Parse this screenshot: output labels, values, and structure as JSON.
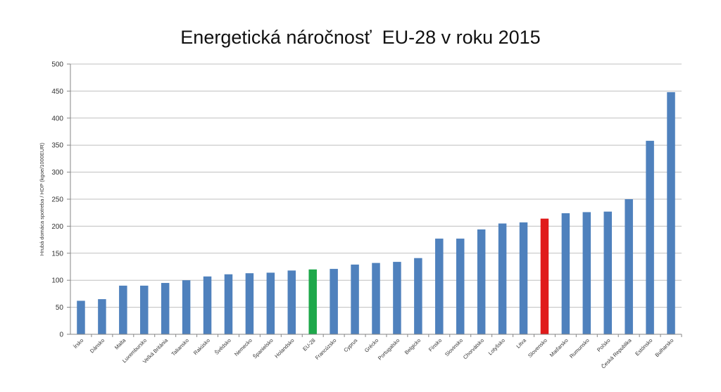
{
  "chart_data": {
    "type": "bar",
    "title": "Energetická náročnosť  EU-28 v roku 2015",
    "ylabel": "Hrubá domáca spotreba / HDP (kgoe/1000EUR)",
    "xlabel": "",
    "ylim": [
      0,
      500
    ],
    "yticks": [
      0,
      50,
      100,
      150,
      200,
      250,
      300,
      350,
      400,
      450,
      500
    ],
    "grid": true,
    "categories": [
      "Írsko",
      "Dánsko",
      "Malta",
      "Luxembursko",
      "Veľká Británia",
      "Taliansko",
      "Rakúsko",
      "Švédsko",
      "Nemecko",
      "Španielsko",
      "Holandsko",
      "EU-28",
      "Francúzsko",
      "Cyprus",
      "Grécko",
      "Portugalsko",
      "Belgicko",
      "Fínsko",
      "Slovinsko",
      "Chorvátsko",
      "Lotyšsko",
      "Litva",
      "Slovensko",
      "Maďarsko",
      "Rumunsko",
      "Poľsko",
      "Česká Republika",
      "Estónsko",
      "Bulharsko"
    ],
    "values": [
      62,
      65,
      90,
      90,
      95,
      100,
      107,
      111,
      113,
      114,
      118,
      120,
      121,
      129,
      132,
      134,
      141,
      177,
      177,
      194,
      205,
      207,
      214,
      224,
      226,
      227,
      250,
      358,
      448
    ],
    "colors": {
      "default": "#4f81bd",
      "EU-28": "#1ea84a",
      "Slovensko": "#e01b1b",
      "grid": "#bfbfbf",
      "axis": "#868686"
    }
  }
}
